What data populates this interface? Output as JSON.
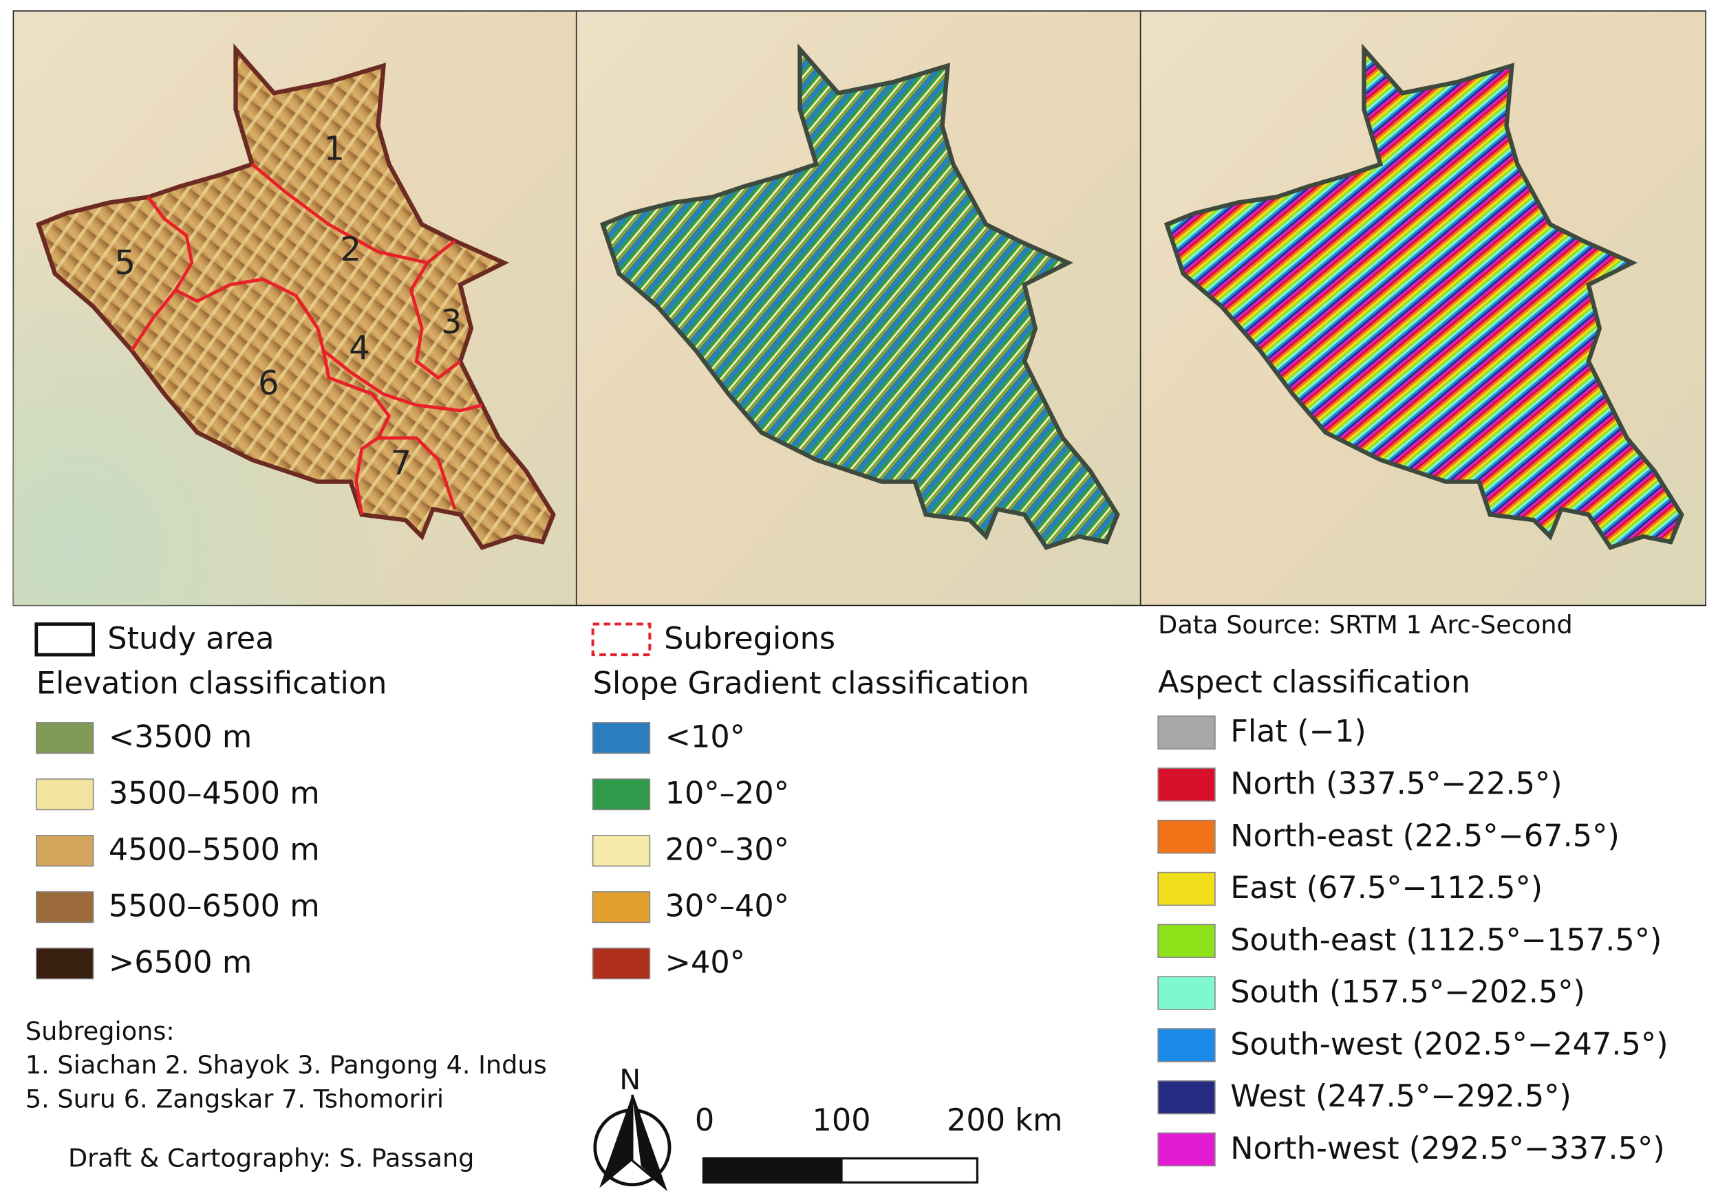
{
  "subregion_labels": [
    "1",
    "2",
    "3",
    "4",
    "5",
    "6",
    "7"
  ],
  "legend": {
    "study_area": "Study area",
    "subregions": "Subregions",
    "data_source": "Data Source: SRTM 1 Arc-Second",
    "elevation": {
      "title": "Elevation classification",
      "items": [
        {
          "label": "<3500 m",
          "color": "#7f9a57"
        },
        {
          "label": "3500–4500 m",
          "color": "#f2e3a0"
        },
        {
          "label": "4500–5500 m",
          "color": "#d2a55c"
        },
        {
          "label": "5500–6500 m",
          "color": "#9b6a3a"
        },
        {
          "label": ">6500 m",
          "color": "#3a2010"
        }
      ]
    },
    "slope": {
      "title": "Slope Gradient classification",
      "items": [
        {
          "label": "<10°",
          "color": "#2a7ec0"
        },
        {
          "label": "10°–20°",
          "color": "#2e9a4a"
        },
        {
          "label": "20°–30°",
          "color": "#f6eaa8"
        },
        {
          "label": "30°–40°",
          "color": "#e3a02c"
        },
        {
          "label": ">40°",
          "color": "#b0301e"
        }
      ]
    },
    "aspect": {
      "title": "Aspect classification",
      "items": [
        {
          "label": "Flat (−1)",
          "color": "#a8a8a8"
        },
        {
          "label": "North (337.5°−22.5°)",
          "color": "#d8102a"
        },
        {
          "label": "North-east (22.5°−67.5°)",
          "color": "#f27218"
        },
        {
          "label": "East (67.5°−112.5°)",
          "color": "#f1df1c"
        },
        {
          "label": "South-east (112.5°−157.5°)",
          "color": "#8ee21a"
        },
        {
          "label": "South (157.5°−202.5°)",
          "color": "#7ff7cf"
        },
        {
          "label": "South-west (202.5°−247.5°)",
          "color": "#1c8ae8"
        },
        {
          "label": "West (247.5°−292.5°)",
          "color": "#252b80"
        },
        {
          "label": "North-west (292.5°−337.5°)",
          "color": "#e21ad2"
        }
      ]
    }
  },
  "subregion_note": {
    "title": "Subregions:",
    "lines": [
      "1. Siachan 2. Shayok 3. Pangong 4. Indus",
      "5. Suru 6. Zangskar 7. Tshomoriri"
    ]
  },
  "credit": "Draft & Cartography: S. Passang",
  "north_arrow": "N",
  "scale_bar": {
    "labels": [
      "0",
      "100",
      "200 km"
    ]
  }
}
